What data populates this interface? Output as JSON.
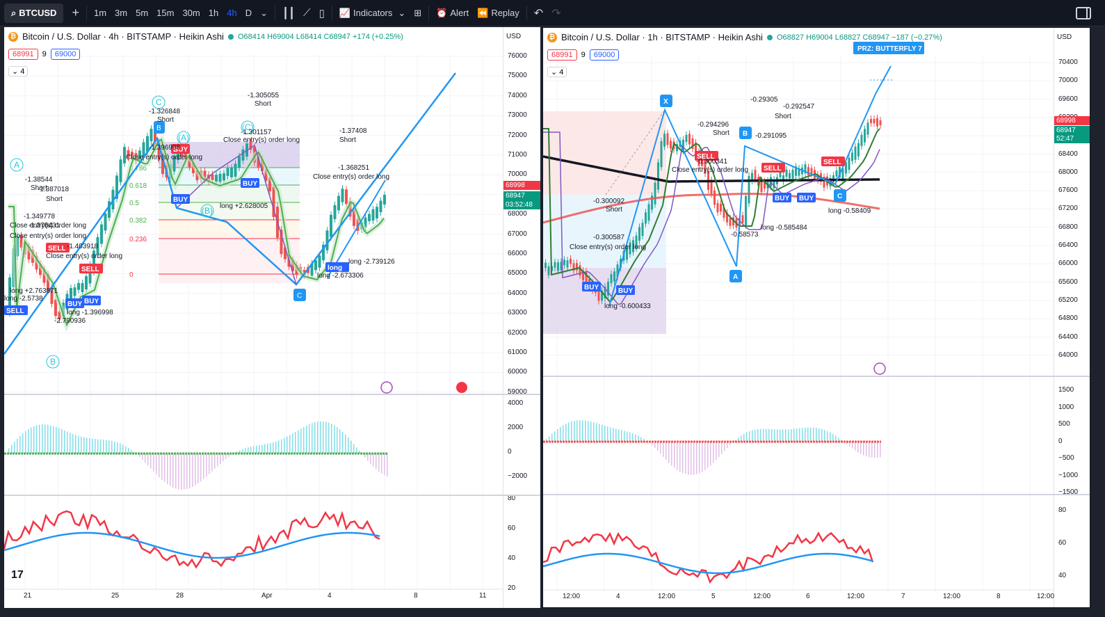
{
  "toolbar": {
    "symbol": "BTCUSD",
    "add": "+",
    "timeframes": [
      "1m",
      "3m",
      "5m",
      "15m",
      "30m",
      "1h",
      "4h",
      "D"
    ],
    "active_timeframe": "4h",
    "indicators": "Indicators",
    "alert": "Alert",
    "replay": "Replay",
    "undo": "↶",
    "redo": "↷"
  },
  "left_chart": {
    "title": "Bitcoin / U.S. Dollar · 4h · BITSTAMP · Heikin Ashi",
    "ohlc": "O68414 H69004 L68414 C68947 +174 (+0.25%)",
    "sell_price": "68991",
    "spread": "9",
    "buy_price": "69000",
    "indicator_count": "4",
    "currency": "USD",
    "price_ticks": [
      "76000",
      "75000",
      "74000",
      "73000",
      "72000",
      "71000",
      "70000",
      "69000",
      "68000",
      "67000",
      "66000",
      "65000",
      "64000",
      "63000",
      "62000",
      "61000",
      "60000",
      "59000"
    ],
    "last_price_red": "68998",
    "last_price_green": "68947",
    "countdown": "03:52:48",
    "macd_ticks": [
      "4000",
      "2000",
      "0",
      "−2000"
    ],
    "rsi_ticks": [
      "80",
      "60",
      "40",
      "20"
    ],
    "time_ticks": [
      "21",
      "25",
      "28",
      "Apr",
      "4",
      "8",
      "11"
    ],
    "fib_levels": [
      "0.786",
      "0.618",
      "0.5",
      "0.382",
      "0.236",
      "0"
    ],
    "wave_labels": [
      "A",
      "B",
      "C",
      "(A)",
      "(B)",
      "(C)"
    ],
    "annotations": [
      "-1.38544",
      "Short",
      "-1.387018",
      "Short",
      "-1.349778",
      "Close entry(s) order long",
      "-1.378431",
      "Close entry(s) order long",
      "-1.403918",
      "Close entry(s) order long",
      "long +2.763871",
      "long -2.5738",
      "long -1.396998",
      "-2.790936",
      "-1.326848",
      "Short",
      "-1.396998",
      "Close entry(s) order long",
      "-1.305055",
      "Short",
      "-1.301157",
      "Close entry(s) order long",
      "long +2.628005",
      "-1.37408",
      "Short",
      "-1.368251",
      "Close entry(s) order long",
      "long -2.739126",
      "long -2.673306"
    ],
    "signals": [
      "SELL",
      "BUY",
      "BUY",
      "BUY",
      "SELL",
      "BUY",
      "BUY",
      "SELL",
      "long"
    ]
  },
  "right_chart": {
    "title": "Bitcoin / U.S. Dollar · 1h · BITSTAMP · Heikin Ashi",
    "ohlc": "O68827 H69004 L68827 C68947 −187 (−0.27%)",
    "sell_price": "68991",
    "spread": "9",
    "buy_price": "69000",
    "indicator_count": "4",
    "currency": "USD",
    "prz_label": "PRZ: BUTTERFLY 7",
    "price_ticks": [
      "70400",
      "70000",
      "69600",
      "69200",
      "68800",
      "68400",
      "68000",
      "67600",
      "67200",
      "66800",
      "66400",
      "66000",
      "65600",
      "65200",
      "64800",
      "64400",
      "64000"
    ],
    "last_price_red": "68998",
    "last_price_green": "68947",
    "countdown": "52:47",
    "macd_ticks": [
      "1500",
      "1000",
      "500",
      "0",
      "−500",
      "−1000",
      "−1500"
    ],
    "rsi_ticks": [
      "80",
      "60",
      "40"
    ],
    "time_ticks": [
      "12:00",
      "4",
      "12:00",
      "5",
      "12:00",
      "6",
      "12:00",
      "7",
      "12:00",
      "8",
      "12:00"
    ],
    "pattern_points": [
      "X",
      "A",
      "B",
      "C"
    ],
    "annotations": [
      "-0.29305",
      "-0.292547",
      "Short",
      "-0.294296",
      "Short",
      "-0.291095",
      "-0.300341",
      "Close entry(s) order long",
      "-0.300092",
      "Short",
      "-0.300587",
      "Close entry(s) order long",
      "long -0.600433",
      "long -0.585484",
      "-0.58573",
      "long -0.58409"
    ],
    "signals": [
      "SELL",
      "SELL",
      "SELL",
      "BUY",
      "BUY",
      "BUY",
      "BUY"
    ]
  }
}
